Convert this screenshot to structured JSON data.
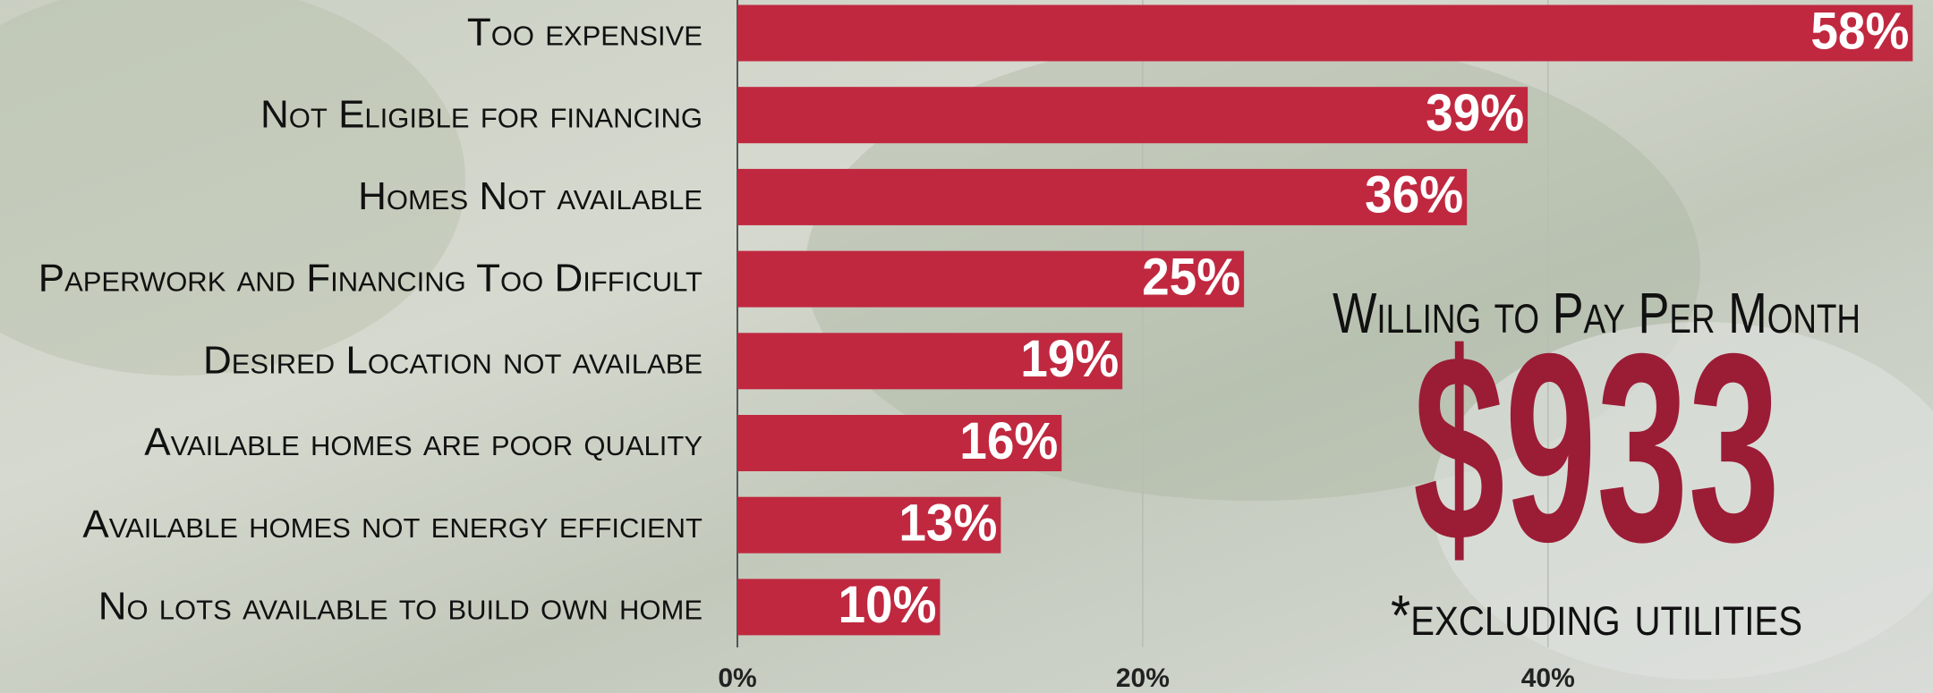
{
  "chart_data": {
    "type": "bar",
    "orientation": "horizontal",
    "categories": [
      "Too expensive",
      "Not Eligible for financing",
      "Homes Not available",
      "Paperwork and Financing Too Difficult",
      "Desired Location not availabe",
      "Available homes are poor quality",
      "Available homes not energy efficient",
      "No lots available to build own home"
    ],
    "values": [
      58,
      39,
      36,
      25,
      19,
      16,
      13,
      10
    ],
    "value_labels": [
      "58%",
      "39%",
      "36%",
      "25%",
      "19%",
      "16%",
      "13%",
      "10%"
    ],
    "color": "#c0283f",
    "xlim": [
      0,
      59
    ],
    "xticks": [
      {
        "value": 0,
        "label": "0%"
      },
      {
        "value": 20,
        "label": "20%"
      },
      {
        "value": 40,
        "label": "40%"
      }
    ],
    "grid": true,
    "annotations": [
      "Willing to Pay Per Month",
      "$933",
      "*excluding utilities"
    ]
  }
}
